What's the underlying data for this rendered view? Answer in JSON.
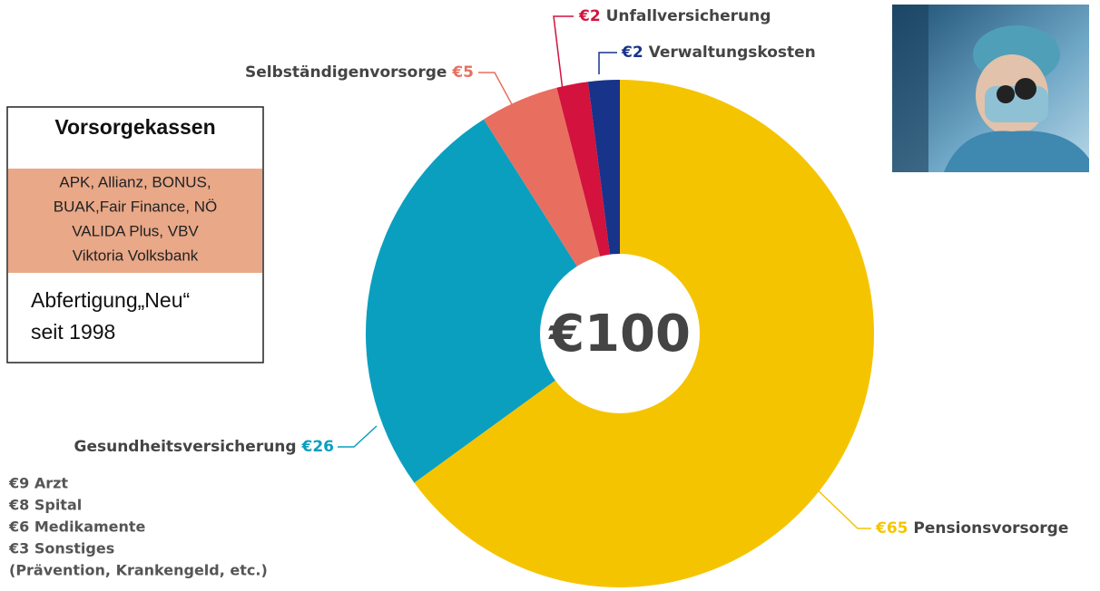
{
  "chart_data": {
    "type": "donut",
    "center_label": "€100",
    "categories": [
      "Pensionsvorsorge",
      "Gesundheitsversicherung",
      "Selbständigenvorsorge",
      "Unfallversicherung",
      "Verwaltungskosten"
    ],
    "values": [
      65,
      26,
      5,
      2,
      2
    ],
    "value_labels": [
      "€65",
      "€26",
      "€5",
      "€2",
      "€2"
    ],
    "colors": [
      "#f5c400",
      "#0a9fbf",
      "#e86f5f",
      "#d3123d",
      "#17338a"
    ],
    "breakdown": [
      "€9 Arzt",
      "€8 Spital",
      "€6 Medikamente",
      "€3 Sonstiges",
      "(Prävention, Krankengeld, etc.)"
    ]
  },
  "info_box": {
    "title": "Vorsorgekassen",
    "providers": [
      "APK, Allianz, BONUS,",
      "BUAK,Fair Finance, NÖ",
      "VALIDA Plus, VBV",
      "Viktoria Volksbank"
    ],
    "note": [
      "Abfertigung„Neu“",
      "seit 1998"
    ]
  }
}
